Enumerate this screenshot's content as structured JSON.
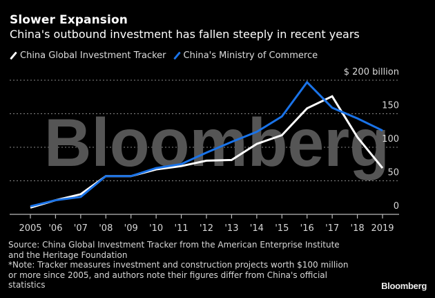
{
  "header": {
    "title": "Slower Expansion",
    "subtitle": "China's outbound investment has fallen steeply in recent years"
  },
  "legend": [
    {
      "label": "China Global Investment Tracker",
      "color": "#ffffff"
    },
    {
      "label": "China's Ministry of Commerce",
      "color": "#1a73e8"
    }
  ],
  "watermark": "Bloomberg",
  "footer": {
    "source_lines": [
      "Source: China Global Investment Tracker from the American Enterprise Institute",
      "and the Heritage Foundation",
      "*Note: Tracker measures investment and construction projects worth $100 million",
      "or more since 2005, and authors note their figures differ from China's official",
      "statistics"
    ],
    "brand": "Bloomberg"
  },
  "chart_data": {
    "type": "line",
    "title": "Slower Expansion",
    "subtitle": "China's outbound investment has fallen steeply in recent years",
    "xlabel": "",
    "ylabel": "$ billion",
    "x": [
      2005,
      2006,
      2007,
      2008,
      2009,
      2010,
      2011,
      2012,
      2013,
      2014,
      2015,
      2016,
      2017,
      2018,
      2019
    ],
    "x_tick_labels": [
      "2005",
      "'06",
      "'07",
      "'08",
      "'09",
      "'10",
      "'11",
      "'12",
      "'13",
      "'14",
      "'15",
      "'16",
      "'17",
      "'18",
      "2019"
    ],
    "y_ticks": [
      0,
      50,
      100,
      150,
      200
    ],
    "y_tick_labels": [
      "0",
      "50",
      "100",
      "150",
      "$ 200  billion"
    ],
    "ylim": [
      0,
      200
    ],
    "grid": true,
    "legend_position": "top-left",
    "y_axis_position": "right",
    "series": [
      {
        "name": "China Global Investment Tracker",
        "color": "#ffffff",
        "values": [
          10,
          21,
          30,
          57,
          57,
          67,
          72,
          80,
          81,
          105,
          118,
          158,
          176,
          115,
          69
        ]
      },
      {
        "name": "China's Ministry of Commerce",
        "color": "#1a73e8",
        "values": [
          12,
          21,
          26,
          57,
          57,
          69,
          75,
          92,
          108,
          123,
          146,
          197,
          159,
          143,
          125
        ]
      }
    ]
  }
}
